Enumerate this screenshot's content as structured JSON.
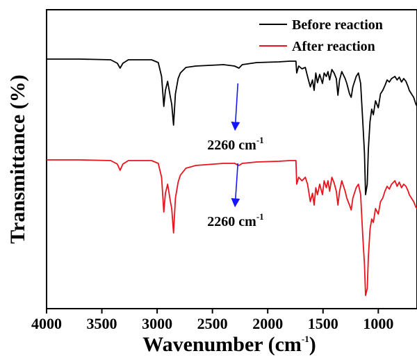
{
  "chart_data": {
    "type": "line",
    "title": "",
    "xlabel": "Wavenumber (cm",
    "xlabel_sup": "-1",
    "xlabel_close": ")",
    "ylabel": "Transmittance (%)",
    "xlim": [
      4000,
      650
    ],
    "x_reversed": true,
    "y_ticks_shown": false,
    "grid": false,
    "x_ticks": [
      "4000",
      "3500",
      "3000",
      "2500",
      "2000",
      "1500",
      "1000"
    ],
    "legend": {
      "placement": "top-right"
    },
    "series": [
      {
        "name": "Before reaction",
        "color": "#000000",
        "offset": 55,
        "points": [
          [
            4000,
            0
          ],
          [
            3700,
            0
          ],
          [
            3420,
            -1
          ],
          [
            3360,
            -6
          ],
          [
            3335,
            -13
          ],
          [
            3310,
            -6
          ],
          [
            3260,
            -1
          ],
          [
            3050,
            -1
          ],
          [
            2990,
            -5
          ],
          [
            2960,
            -25
          ],
          [
            2940,
            -68
          ],
          [
            2925,
            -45
          ],
          [
            2905,
            -32
          ],
          [
            2880,
            -55
          ],
          [
            2868,
            -65
          ],
          [
            2852,
            -95
          ],
          [
            2835,
            -50
          ],
          [
            2810,
            -28
          ],
          [
            2790,
            -20
          ],
          [
            2740,
            -12
          ],
          [
            2650,
            -10
          ],
          [
            2400,
            -8
          ],
          [
            2300,
            -10
          ],
          [
            2260,
            -13
          ],
          [
            2230,
            -8
          ],
          [
            2100,
            -5
          ],
          [
            1900,
            -4
          ],
          [
            1800,
            -3
          ],
          [
            1745,
            -3
          ],
          [
            1738,
            -20
          ],
          [
            1720,
            -10
          ],
          [
            1690,
            -14
          ],
          [
            1660,
            -12
          ],
          [
            1640,
            -25
          ],
          [
            1615,
            -40
          ],
          [
            1595,
            -30
          ],
          [
            1580,
            -45
          ],
          [
            1565,
            -20
          ],
          [
            1550,
            -34
          ],
          [
            1530,
            -22
          ],
          [
            1505,
            -35
          ],
          [
            1490,
            -20
          ],
          [
            1470,
            -25
          ],
          [
            1455,
            -18
          ],
          [
            1440,
            -30
          ],
          [
            1420,
            -15
          ],
          [
            1400,
            -20
          ],
          [
            1380,
            -28
          ],
          [
            1365,
            -52
          ],
          [
            1350,
            -30
          ],
          [
            1330,
            -18
          ],
          [
            1300,
            -28
          ],
          [
            1285,
            -35
          ],
          [
            1260,
            -50
          ],
          [
            1245,
            -55
          ],
          [
            1230,
            -40
          ],
          [
            1200,
            -25
          ],
          [
            1180,
            -20
          ],
          [
            1160,
            -35
          ],
          [
            1140,
            -90
          ],
          [
            1125,
            -135
          ],
          [
            1115,
            -195
          ],
          [
            1100,
            -180
          ],
          [
            1090,
            -130
          ],
          [
            1075,
            -90
          ],
          [
            1060,
            -72
          ],
          [
            1045,
            -80
          ],
          [
            1025,
            -60
          ],
          [
            1000,
            -70
          ],
          [
            980,
            -50
          ],
          [
            960,
            -45
          ],
          [
            940,
            -38
          ],
          [
            920,
            -30
          ],
          [
            900,
            -33
          ],
          [
            880,
            -28
          ],
          [
            850,
            -25
          ],
          [
            830,
            -30
          ],
          [
            810,
            -26
          ],
          [
            790,
            -33
          ],
          [
            770,
            -28
          ],
          [
            750,
            -32
          ],
          [
            730,
            -40
          ],
          [
            720,
            -45
          ],
          [
            700,
            -50
          ],
          [
            680,
            -55
          ],
          [
            660,
            -65
          ],
          [
            650,
            -68
          ]
        ]
      },
      {
        "name": "After reaction",
        "color": "#e8141c",
        "offset": -90,
        "points": [
          [
            4000,
            0
          ],
          [
            3700,
            0
          ],
          [
            3420,
            -1
          ],
          [
            3360,
            -6
          ],
          [
            3335,
            -15
          ],
          [
            3310,
            -6
          ],
          [
            3260,
            -1
          ],
          [
            3050,
            -1
          ],
          [
            2990,
            -5
          ],
          [
            2960,
            -25
          ],
          [
            2940,
            -75
          ],
          [
            2925,
            -48
          ],
          [
            2905,
            -35
          ],
          [
            2880,
            -60
          ],
          [
            2868,
            -70
          ],
          [
            2852,
            -105
          ],
          [
            2835,
            -55
          ],
          [
            2810,
            -32
          ],
          [
            2790,
            -22
          ],
          [
            2740,
            -12
          ],
          [
            2650,
            -8
          ],
          [
            2400,
            -5
          ],
          [
            2300,
            -5
          ],
          [
            2260,
            -8
          ],
          [
            2230,
            -5
          ],
          [
            2100,
            -3
          ],
          [
            1900,
            -2
          ],
          [
            1800,
            -1
          ],
          [
            1745,
            -1
          ],
          [
            1738,
            -35
          ],
          [
            1720,
            -25
          ],
          [
            1690,
            -30
          ],
          [
            1660,
            -25
          ],
          [
            1640,
            -35
          ],
          [
            1615,
            -60
          ],
          [
            1595,
            -48
          ],
          [
            1580,
            -65
          ],
          [
            1565,
            -40
          ],
          [
            1550,
            -50
          ],
          [
            1530,
            -35
          ],
          [
            1505,
            -50
          ],
          [
            1490,
            -30
          ],
          [
            1470,
            -40
          ],
          [
            1455,
            -30
          ],
          [
            1440,
            -45
          ],
          [
            1420,
            -25
          ],
          [
            1400,
            -33
          ],
          [
            1380,
            -45
          ],
          [
            1365,
            -65
          ],
          [
            1350,
            -45
          ],
          [
            1330,
            -30
          ],
          [
            1300,
            -45
          ],
          [
            1285,
            -55
          ],
          [
            1260,
            -65
          ],
          [
            1245,
            -72
          ],
          [
            1230,
            -55
          ],
          [
            1200,
            -40
          ],
          [
            1180,
            -35
          ],
          [
            1160,
            -50
          ],
          [
            1140,
            -110
          ],
          [
            1125,
            -150
          ],
          [
            1115,
            -195
          ],
          [
            1100,
            -185
          ],
          [
            1090,
            -140
          ],
          [
            1075,
            -100
          ],
          [
            1060,
            -85
          ],
          [
            1045,
            -90
          ],
          [
            1025,
            -70
          ],
          [
            1000,
            -78
          ],
          [
            980,
            -60
          ],
          [
            960,
            -55
          ],
          [
            940,
            -45
          ],
          [
            920,
            -38
          ],
          [
            900,
            -42
          ],
          [
            880,
            -35
          ],
          [
            850,
            -30
          ],
          [
            830,
            -38
          ],
          [
            810,
            -32
          ],
          [
            790,
            -40
          ],
          [
            770,
            -35
          ],
          [
            750,
            -38
          ],
          [
            730,
            -45
          ],
          [
            720,
            -50
          ],
          [
            700,
            -55
          ],
          [
            680,
            -60
          ],
          [
            660,
            -68
          ],
          [
            650,
            -70
          ]
        ]
      }
    ],
    "annotations": [
      {
        "text": "2260 cm",
        "sup": "-1",
        "arrow_from": [
          2270,
          -35
        ],
        "arrow_to": [
          2295,
          -100
        ],
        "series": 0,
        "color": "#1515ff"
      },
      {
        "text": "2260 cm",
        "sup": "-1",
        "arrow_from": [
          2270,
          -5
        ],
        "arrow_to": [
          2295,
          -65
        ],
        "series": 1,
        "color": "#1515ff"
      }
    ]
  }
}
